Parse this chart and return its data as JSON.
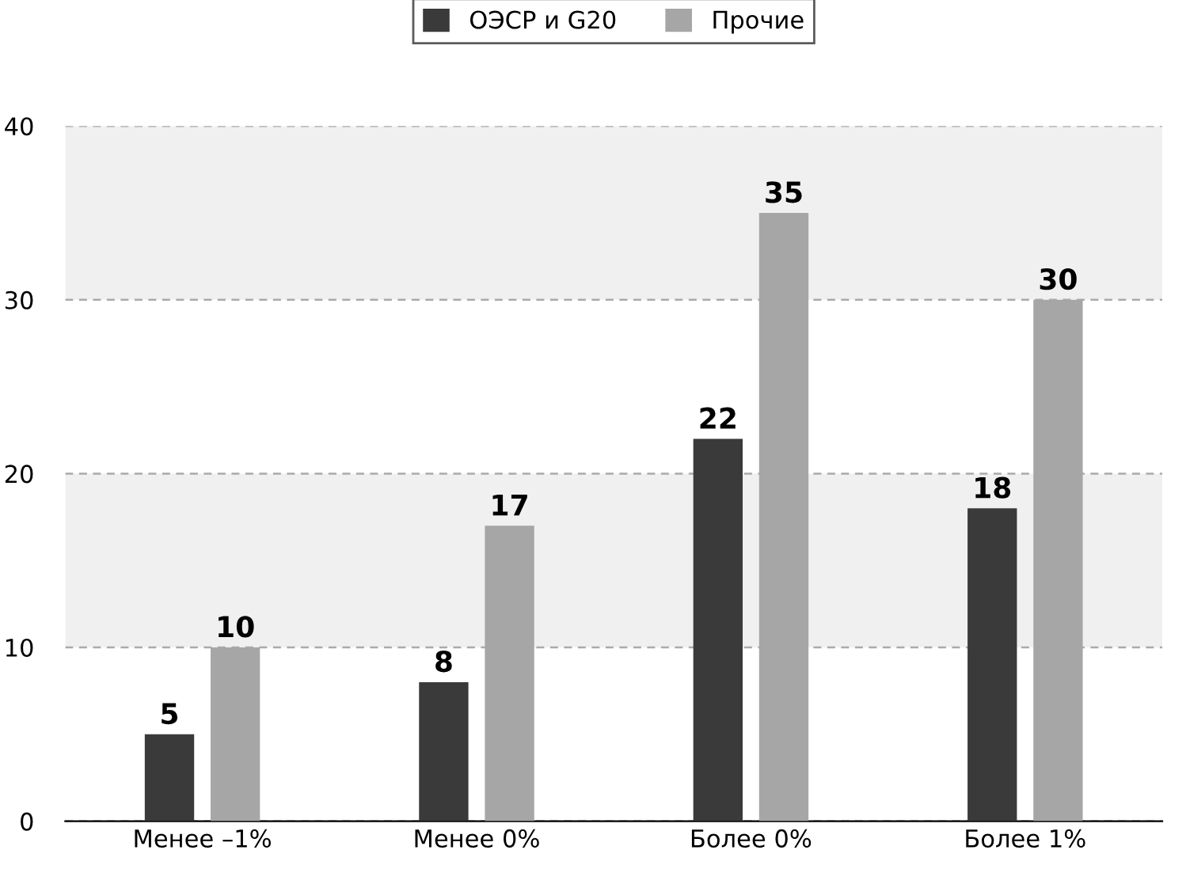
{
  "chart_data": {
    "type": "bar",
    "categories": [
      "Менее –1%",
      "Менее 0%",
      "Более 0%",
      "Более 1%"
    ],
    "series": [
      {
        "name": "ОЭСР и G20",
        "color": "#3a3a3a",
        "values": [
          5,
          8,
          22,
          18
        ]
      },
      {
        "name": "Прочие",
        "color": "#a6a6a6",
        "values": [
          10,
          17,
          35,
          30
        ]
      }
    ],
    "ylim": [
      0,
      40
    ],
    "yticks": [
      0,
      10,
      20,
      30,
      40
    ],
    "grid": "y",
    "legend": "top",
    "data_labels": true,
    "bands": [
      {
        "axis": "y",
        "from": 10,
        "to": 20,
        "color": "#f0f0f0"
      },
      {
        "axis": "y",
        "from": 30,
        "to": 40,
        "color": "#f0f0f0"
      }
    ]
  }
}
